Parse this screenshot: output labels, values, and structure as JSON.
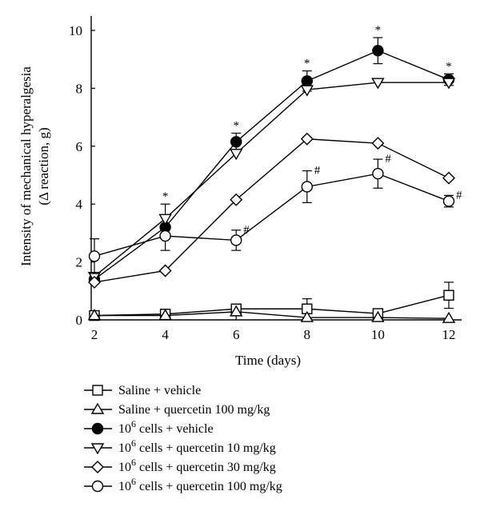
{
  "chart_data": {
    "type": "line",
    "xlabel": "Time (days)",
    "ylabel_line1": "Intensity of mechanical hyperalgesia",
    "ylabel_line2": "(Δ reaction, g)",
    "xlim": [
      2,
      12
    ],
    "ylim": [
      0,
      10
    ],
    "xticks": [
      2,
      4,
      6,
      8,
      10,
      12
    ],
    "yticks": [
      0,
      2,
      4,
      6,
      8,
      10
    ],
    "x": [
      2,
      4,
      6,
      8,
      10,
      12
    ],
    "grid": false,
    "legend_position": "below",
    "series": [
      {
        "name": "Saline + vehicle",
        "legend_sup": "",
        "legend_rest": "Saline + vehicle",
        "marker": "square",
        "values": [
          0.15,
          0.2,
          0.38,
          0.38,
          0.22,
          0.85
        ],
        "errors": [
          0.05,
          0.05,
          0.12,
          0.35,
          0.08,
          0.45
        ],
        "annotations": [
          "",
          "",
          "",
          "",
          "",
          ""
        ]
      },
      {
        "name": "Saline + quercetin 100 mg/kg",
        "legend_sup": "",
        "legend_rest": "Saline + quercetin 100 mg/kg",
        "marker": "triangle-up",
        "values": [
          0.15,
          0.15,
          0.28,
          0.08,
          0.08,
          0.05
        ],
        "errors": [
          0.03,
          0.03,
          0.05,
          0.02,
          0.02,
          0.02
        ],
        "annotations": [
          "",
          "",
          "",
          "",
          "",
          ""
        ]
      },
      {
        "name": "10⁶ cells + vehicle",
        "legend_sup": "6",
        "legend_rest": " cells + vehicle",
        "marker": "circle-filled",
        "values": [
          1.4,
          3.2,
          6.15,
          8.25,
          9.3,
          8.3
        ],
        "errors": [
          0.15,
          0.8,
          0.3,
          0.35,
          0.45,
          0.2
        ],
        "annotations": [
          "",
          "*",
          "*",
          "*",
          "*",
          "*"
        ]
      },
      {
        "name": "10⁶ cells + quercetin 10 mg/kg",
        "legend_sup": "6",
        "legend_rest": " cells + quercetin 10 mg/kg",
        "marker": "triangle-down",
        "values": [
          1.5,
          3.5,
          5.75,
          7.95,
          8.2,
          8.2
        ],
        "errors": [
          0.05,
          0.05,
          0.05,
          0.05,
          0.05,
          0.05
        ],
        "annotations": [
          "",
          "",
          "",
          "",
          "",
          ""
        ]
      },
      {
        "name": "10⁶ cells + quercetin 30 mg/kg",
        "legend_sup": "6",
        "legend_rest": " cells + quercetin 30 mg/kg",
        "marker": "diamond",
        "values": [
          1.3,
          1.7,
          4.15,
          6.25,
          6.1,
          4.9
        ],
        "errors": [
          0.05,
          0.05,
          0.05,
          0.05,
          0.05,
          0.05
        ],
        "annotations": [
          "",
          "",
          "",
          "",
          "",
          ""
        ]
      },
      {
        "name": "10⁶ cells + quercetin 100 mg/kg",
        "legend_sup": "6",
        "legend_rest": " cells + quercetin 100 mg/kg",
        "marker": "circle-open",
        "values": [
          2.2,
          2.9,
          2.75,
          4.6,
          5.05,
          4.1
        ],
        "errors": [
          0.6,
          0.05,
          0.35,
          0.55,
          0.5,
          0.2
        ],
        "annotations": [
          "",
          "",
          "#",
          "#",
          "#",
          "#"
        ]
      }
    ]
  }
}
